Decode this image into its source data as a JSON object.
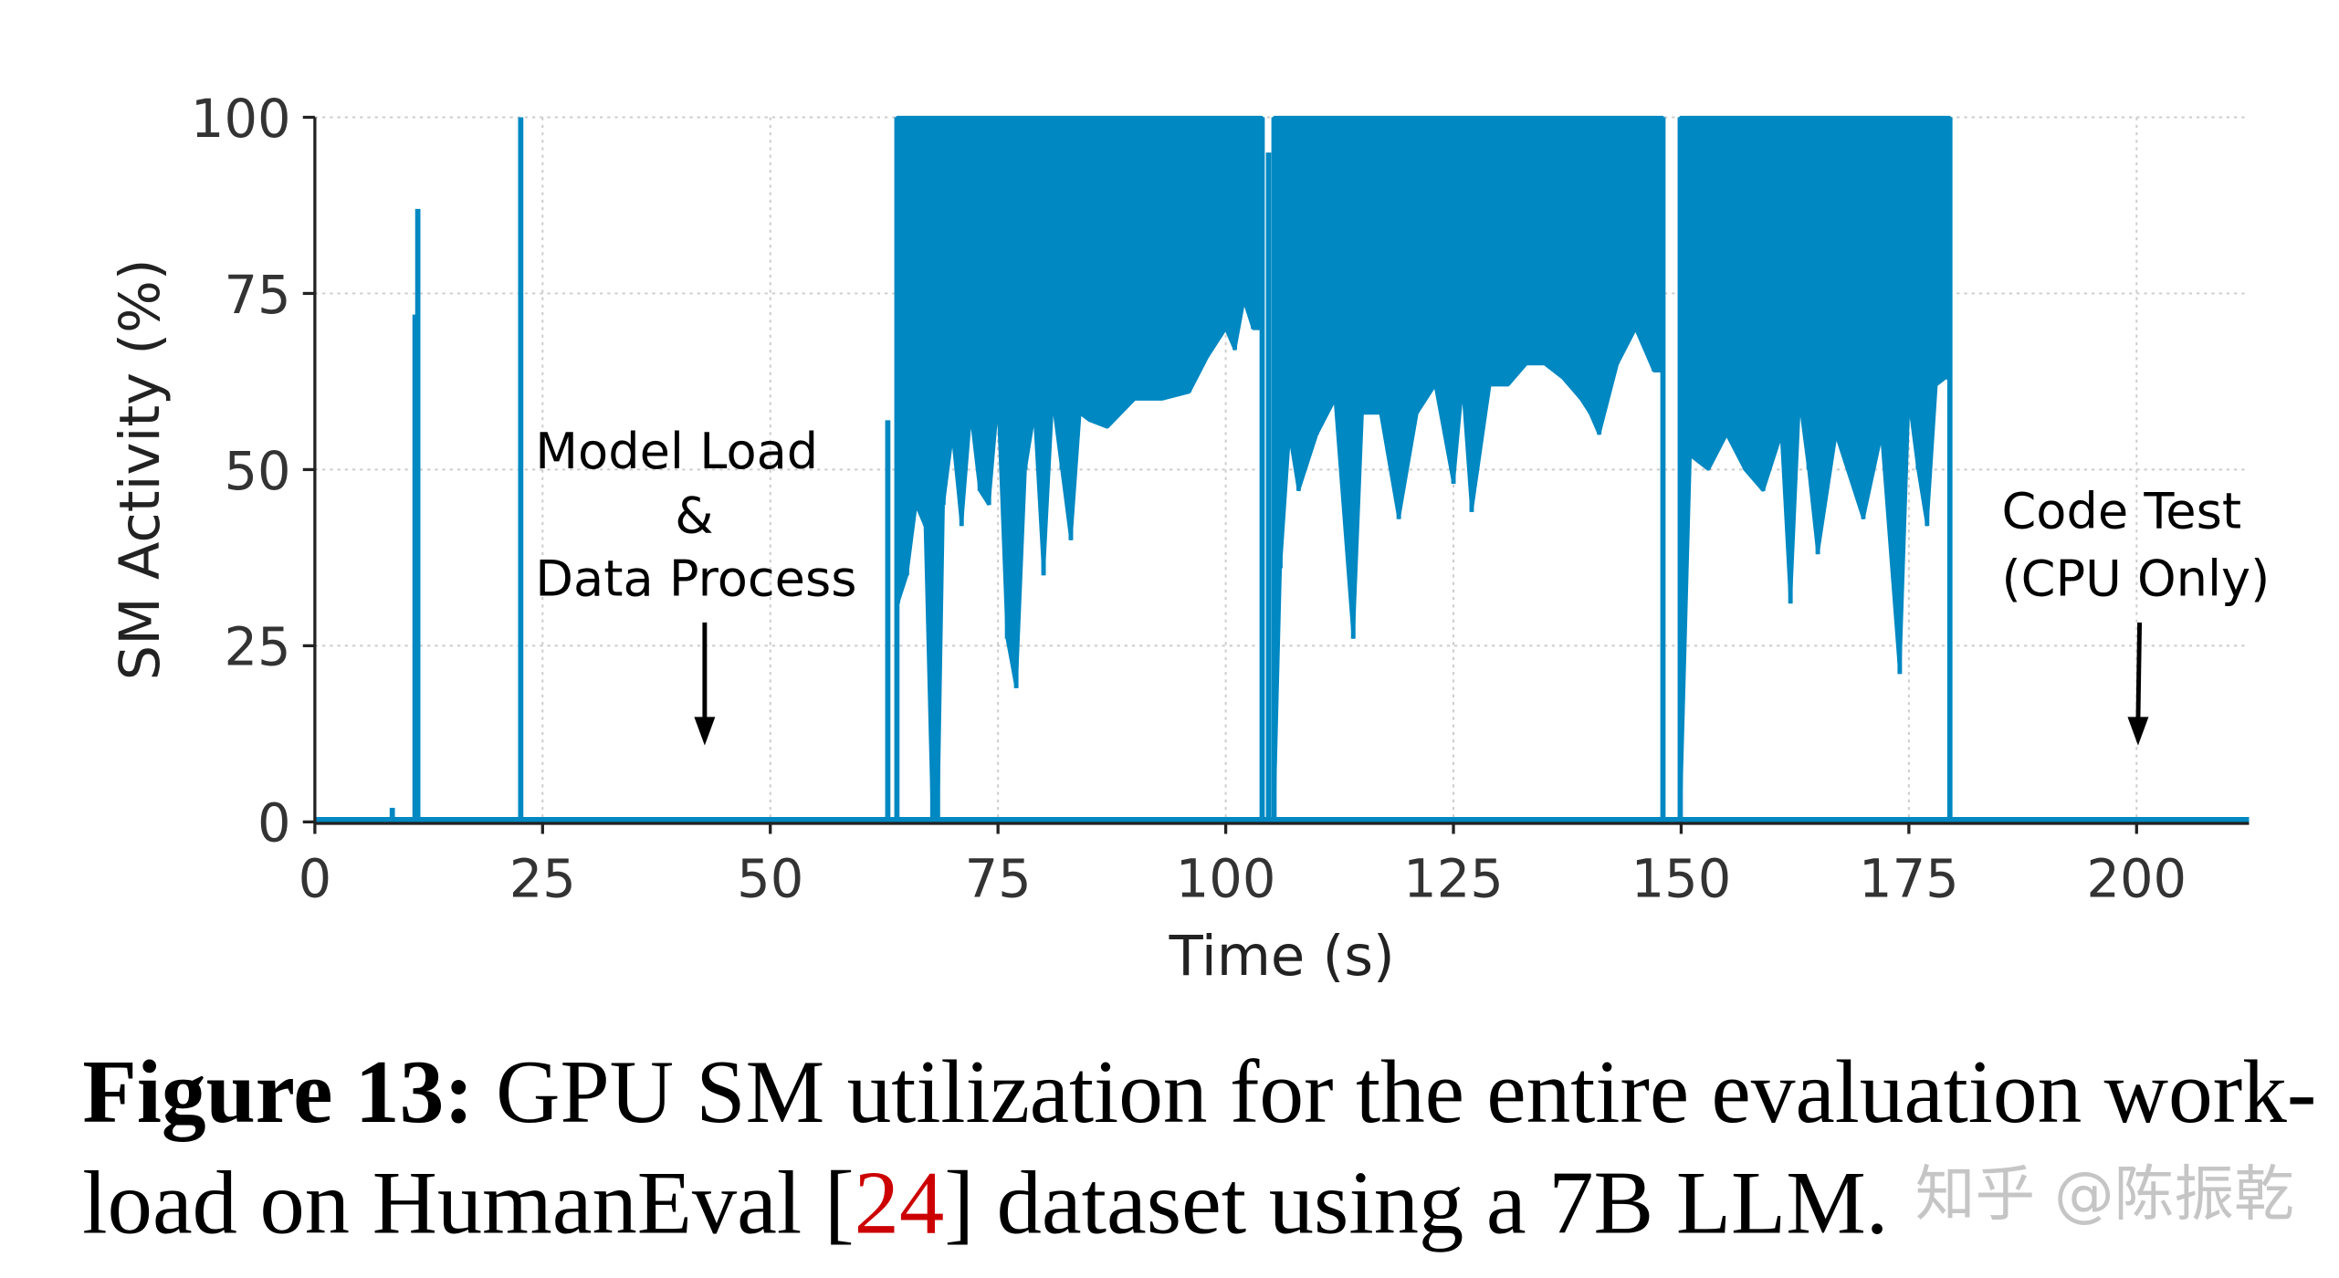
{
  "chart_data": {
    "type": "line",
    "xlabel": "Time (s)",
    "ylabel": "SM Activity (%)",
    "xlim": [
      0,
      213
    ],
    "ylim": [
      0,
      100
    ],
    "xticks": [
      0,
      25,
      50,
      75,
      100,
      125,
      150,
      175,
      200
    ],
    "yticks": [
      0,
      25,
      50,
      75,
      100
    ],
    "grid": true,
    "color": "#0088c2",
    "spikes": [
      {
        "t": 8.5,
        "value": 2
      },
      {
        "t": 11.0,
        "value": 72
      },
      {
        "t": 11.3,
        "value": 87
      },
      {
        "t": 22.6,
        "value": 100
      },
      {
        "t": 62.9,
        "value": 57
      },
      {
        "t": 104.7,
        "value": 95
      }
    ],
    "active_segments": [
      {
        "start": 63.9,
        "end": 104.0,
        "peak": 100,
        "low": [
          [
            64,
            31
          ],
          [
            65,
            35
          ],
          [
            66,
            45
          ],
          [
            67,
            42
          ],
          [
            67.8,
            0
          ],
          [
            68.4,
            0
          ],
          [
            69,
            45
          ],
          [
            70,
            55
          ],
          [
            71,
            42
          ],
          [
            72,
            58
          ],
          [
            73,
            47
          ],
          [
            74,
            45
          ],
          [
            75,
            60
          ],
          [
            76,
            26
          ],
          [
            77,
            19
          ],
          [
            78,
            50
          ],
          [
            79,
            58
          ],
          [
            80,
            35
          ],
          [
            81,
            60
          ],
          [
            82,
            50
          ],
          [
            83,
            40
          ],
          [
            84,
            58
          ],
          [
            85,
            57
          ],
          [
            87,
            56
          ],
          [
            90,
            60
          ],
          [
            93,
            60
          ],
          [
            96,
            61
          ],
          [
            98,
            66
          ],
          [
            100,
            70
          ],
          [
            101,
            67
          ],
          [
            102,
            74
          ],
          [
            103,
            70
          ],
          [
            104,
            70
          ]
        ]
      },
      {
        "start": 105.3,
        "end": 148.0,
        "peak": 100,
        "low": [
          [
            105.3,
            0
          ],
          [
            106,
            36
          ],
          [
            107,
            55
          ],
          [
            108,
            47
          ],
          [
            110,
            55
          ],
          [
            112,
            60
          ],
          [
            114,
            26
          ],
          [
            115,
            58
          ],
          [
            117,
            58
          ],
          [
            119,
            43
          ],
          [
            121,
            58
          ],
          [
            123,
            62
          ],
          [
            125,
            48
          ],
          [
            126,
            62
          ],
          [
            127,
            44
          ],
          [
            129,
            62
          ],
          [
            131,
            62
          ],
          [
            133,
            65
          ],
          [
            135,
            65
          ],
          [
            137,
            63
          ],
          [
            139,
            60
          ],
          [
            140,
            58
          ],
          [
            141,
            55
          ],
          [
            143,
            65
          ],
          [
            145,
            70
          ],
          [
            147,
            64
          ],
          [
            148,
            64
          ]
        ]
      },
      {
        "start": 149.9,
        "end": 179.5,
        "peak": 100,
        "low": [
          [
            149.9,
            0
          ],
          [
            151,
            52
          ],
          [
            153,
            50
          ],
          [
            155,
            55
          ],
          [
            157,
            50
          ],
          [
            159,
            47
          ],
          [
            161,
            55
          ],
          [
            162,
            31
          ],
          [
            163,
            60
          ],
          [
            164,
            50
          ],
          [
            165,
            38
          ],
          [
            167,
            55
          ],
          [
            170,
            43
          ],
          [
            172,
            55
          ],
          [
            174,
            21
          ],
          [
            175,
            60
          ],
          [
            176,
            50
          ],
          [
            177,
            42
          ],
          [
            178,
            62
          ],
          [
            179,
            63
          ],
          [
            179.5,
            63
          ]
        ]
      }
    ],
    "baseline": 0,
    "annotations": [
      {
        "lines": [
          "Model Load",
          "&",
          "Data Process"
        ],
        "arrow_t": 43
      },
      {
        "lines": [
          "Code Test",
          "(CPU Only)"
        ],
        "arrow_t": 200
      }
    ]
  },
  "caption": {
    "label": "Figure 13:",
    "line1_text": " GPU SM utilization for the entire evaluation work-",
    "line2_before": "load on HumanEval [",
    "ref": "24",
    "line2_after": "] dataset using a 7B LLM.",
    "ref_color": "#cc0000"
  },
  "watermark": "知乎 @陈振乾"
}
